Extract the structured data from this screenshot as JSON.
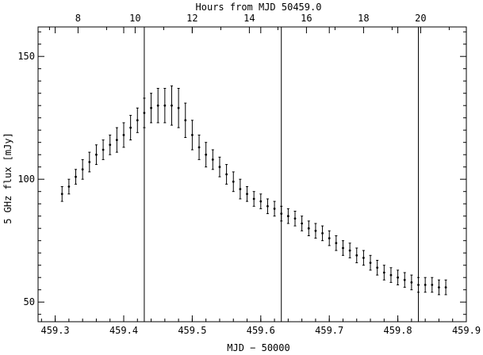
{
  "chart_data": {
    "type": "scatter",
    "xlabel": "MJD − 50000",
    "top_xlabel": "Hours from MJD 50459.0",
    "ylabel": "5 GHz flux [mJy]",
    "xlim": [
      459.275,
      459.9
    ],
    "ylim": [
      42,
      162
    ],
    "x_ticks": [
      "459.3",
      "459.4",
      "459.5",
      "459.6",
      "459.7",
      "459.8",
      "459.9"
    ],
    "x_tick_values": [
      459.3,
      459.4,
      459.5,
      459.6,
      459.7,
      459.8,
      459.9
    ],
    "top_ticks": [
      "8",
      "10",
      "12",
      "14",
      "16",
      "18",
      "20"
    ],
    "top_tick_hours": [
      8,
      10,
      12,
      14,
      16,
      18,
      20
    ],
    "y_ticks": [
      "50",
      "100",
      "150"
    ],
    "y_tick_values": [
      50,
      100,
      150
    ],
    "vertical_lines_x": [
      459.43,
      459.63,
      459.83
    ],
    "points": {
      "x": [
        459.31,
        459.32,
        459.33,
        459.34,
        459.35,
        459.36,
        459.37,
        459.38,
        459.39,
        459.4,
        459.41,
        459.42,
        459.43,
        459.44,
        459.45,
        459.46,
        459.47,
        459.48,
        459.49,
        459.5,
        459.51,
        459.52,
        459.53,
        459.54,
        459.55,
        459.56,
        459.57,
        459.58,
        459.59,
        459.6,
        459.61,
        459.62,
        459.63,
        459.64,
        459.65,
        459.66,
        459.67,
        459.68,
        459.69,
        459.7,
        459.71,
        459.72,
        459.73,
        459.74,
        459.75,
        459.76,
        459.77,
        459.78,
        459.79,
        459.8,
        459.81,
        459.82,
        459.83,
        459.84,
        459.85,
        459.86,
        459.87
      ],
      "y": [
        94,
        97,
        101,
        104,
        107,
        110,
        112,
        114,
        116,
        118,
        121,
        124,
        127,
        129,
        130,
        130,
        130,
        129,
        124,
        118,
        113,
        110,
        108,
        105,
        102,
        99,
        96,
        94,
        92,
        91,
        89,
        88,
        86,
        85,
        84,
        82,
        80,
        79,
        78,
        76,
        74,
        72,
        71,
        69,
        68,
        66,
        64,
        62,
        61,
        60,
        59,
        58,
        57,
        57,
        57,
        56,
        56
      ],
      "err": [
        3,
        3,
        3,
        4,
        4,
        4,
        4,
        4,
        5,
        5,
        5,
        5,
        6,
        6,
        7,
        7,
        8,
        8,
        7,
        6,
        5,
        5,
        4,
        4,
        4,
        4,
        4,
        3,
        3,
        3,
        3,
        3,
        3,
        3,
        3,
        3,
        3,
        3,
        3,
        3,
        3,
        3,
        3,
        3,
        3,
        3,
        3,
        3,
        3,
        3,
        3,
        3,
        3,
        3,
        3,
        3,
        3
      ]
    }
  }
}
